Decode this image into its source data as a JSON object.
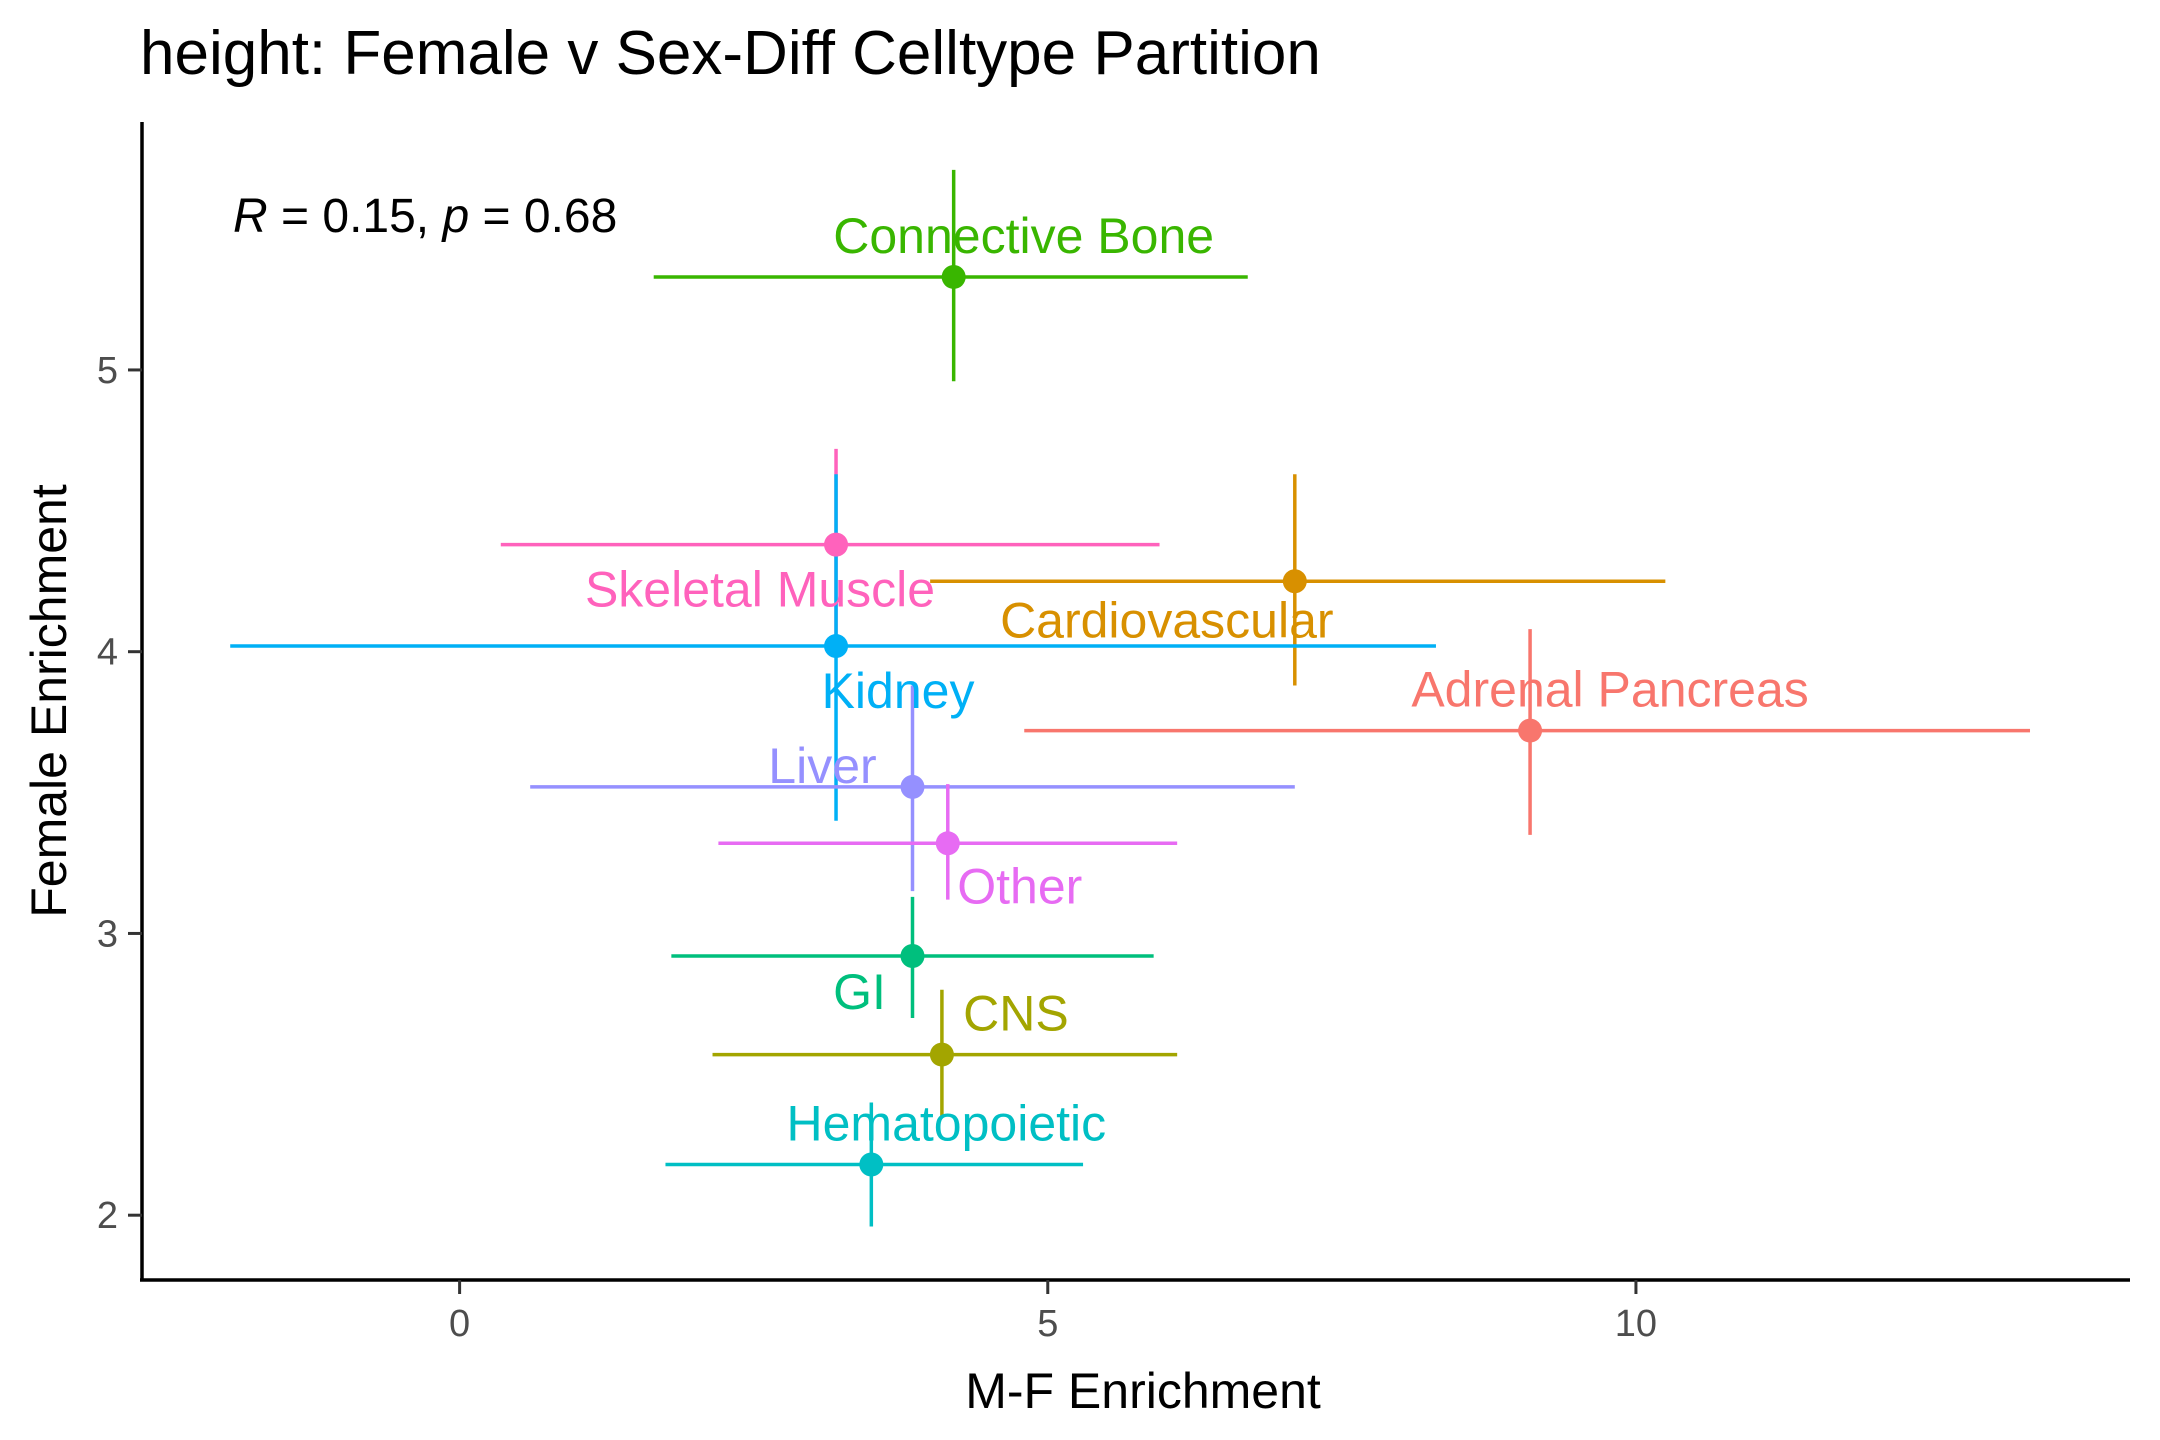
{
  "chart_data": {
    "type": "scatter",
    "title": "height: Female v Sex-Diff Celltype Partition",
    "xlabel": "M-F Enrichment",
    "ylabel": "Female Enrichment",
    "xlim": [
      -2.7,
      14.2
    ],
    "ylim": [
      1.77,
      5.88
    ],
    "xticks": [
      0,
      5,
      10
    ],
    "yticks": [
      2,
      3,
      4,
      5
    ],
    "grid": false,
    "legend": "none",
    "annotation": {
      "r_symbol": "R",
      "r_value": " = 0.15, ",
      "p_symbol": "p",
      "p_value": " = 0.68"
    },
    "points": [
      {
        "label": "Connective Bone",
        "x": 4.2,
        "y": 5.33,
        "xmin": 1.65,
        "xmax": 6.7,
        "ymin": 4.96,
        "ymax": 5.71,
        "color": "#39B600"
      },
      {
        "label": "Skeletal Muscle",
        "x": 3.2,
        "y": 4.38,
        "xmin": 0.35,
        "xmax": 5.95,
        "ymin": 4.03,
        "ymax": 4.72,
        "color": "#FF62BC"
      },
      {
        "label": "Cardiovascular",
        "x": 7.1,
        "y": 4.25,
        "xmin": 4.0,
        "xmax": 10.25,
        "ymin": 3.88,
        "ymax": 4.63,
        "color": "#D89000"
      },
      {
        "label": "Kidney",
        "x": 3.2,
        "y": 4.02,
        "xmin": -1.95,
        "xmax": 8.3,
        "ymin": 3.4,
        "ymax": 4.63,
        "color": "#00B0F6"
      },
      {
        "label": "Adrenal Pancreas",
        "x": 9.1,
        "y": 3.72,
        "xmin": 4.8,
        "xmax": 13.35,
        "ymin": 3.35,
        "ymax": 4.08,
        "color": "#F8766D"
      },
      {
        "label": "Liver",
        "x": 3.85,
        "y": 3.52,
        "xmin": 0.6,
        "xmax": 7.1,
        "ymin": 3.15,
        "ymax": 3.88,
        "color": "#9590FF"
      },
      {
        "label": "Other",
        "x": 4.15,
        "y": 3.32,
        "xmin": 2.2,
        "xmax": 6.1,
        "ymin": 3.12,
        "ymax": 3.53,
        "color": "#E76BF3"
      },
      {
        "label": "GI",
        "x": 3.85,
        "y": 2.92,
        "xmin": 1.8,
        "xmax": 5.9,
        "ymin": 2.7,
        "ymax": 3.13,
        "color": "#00BF7D"
      },
      {
        "label": "CNS",
        "x": 4.1,
        "y": 2.57,
        "xmin": 2.15,
        "xmax": 6.1,
        "ymin": 2.35,
        "ymax": 2.8,
        "color": "#A3A500"
      },
      {
        "label": "Hematopoietic",
        "x": 3.5,
        "y": 2.18,
        "xmin": 1.75,
        "xmax": 5.3,
        "ymin": 1.96,
        "ymax": 2.4,
        "color": "#00BFC4"
      }
    ]
  }
}
